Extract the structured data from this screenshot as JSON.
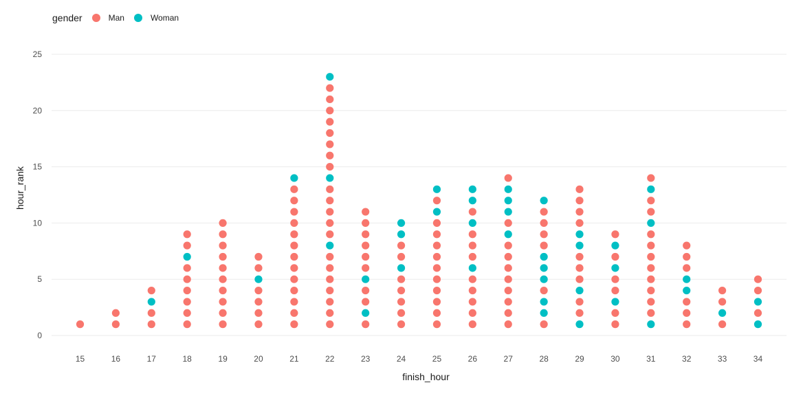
{
  "legend": {
    "title": "gender",
    "items": [
      {
        "label": "Man",
        "color": "#F8766D"
      },
      {
        "label": "Woman",
        "color": "#00BFC4"
      }
    ]
  },
  "chart_data": {
    "type": "scatter",
    "xlabel": "finish_hour",
    "ylabel": "hour_rank",
    "x_ticks": [
      15,
      16,
      17,
      18,
      19,
      20,
      21,
      22,
      23,
      24,
      25,
      26,
      27,
      28,
      29,
      30,
      31,
      32,
      33,
      34
    ],
    "y_ticks": [
      0,
      5,
      10,
      15,
      20,
      25
    ],
    "ylim": [
      0,
      25
    ],
    "xlim": [
      14.2,
      34.8
    ],
    "grid": true,
    "legend_position": "top-left",
    "series": [
      {
        "name": "Man",
        "color": "#F8766D"
      },
      {
        "name": "Woman",
        "color": "#00BFC4"
      }
    ],
    "columns": [
      {
        "x": 15,
        "genders": [
          "Man"
        ]
      },
      {
        "x": 16,
        "genders": [
          "Man",
          "Man"
        ]
      },
      {
        "x": 17,
        "genders": [
          "Man",
          "Man",
          "Woman",
          "Man"
        ]
      },
      {
        "x": 18,
        "genders": [
          "Man",
          "Man",
          "Man",
          "Man",
          "Man",
          "Man",
          "Woman",
          "Man",
          "Man"
        ]
      },
      {
        "x": 19,
        "genders": [
          "Man",
          "Man",
          "Man",
          "Man",
          "Man",
          "Man",
          "Man",
          "Man",
          "Man",
          "Man"
        ]
      },
      {
        "x": 20,
        "genders": [
          "Man",
          "Man",
          "Man",
          "Man",
          "Woman",
          "Man",
          "Man"
        ]
      },
      {
        "x": 21,
        "genders": [
          "Man",
          "Man",
          "Man",
          "Man",
          "Man",
          "Man",
          "Man",
          "Man",
          "Man",
          "Man",
          "Man",
          "Man",
          "Man",
          "Woman"
        ]
      },
      {
        "x": 22,
        "genders": [
          "Man",
          "Man",
          "Man",
          "Man",
          "Man",
          "Man",
          "Man",
          "Woman",
          "Man",
          "Man",
          "Man",
          "Man",
          "Man",
          "Woman",
          "Man",
          "Man",
          "Man",
          "Man",
          "Man",
          "Man",
          "Man",
          "Man",
          "Woman"
        ]
      },
      {
        "x": 23,
        "genders": [
          "Man",
          "Woman",
          "Man",
          "Man",
          "Woman",
          "Man",
          "Man",
          "Man",
          "Man",
          "Man",
          "Man"
        ]
      },
      {
        "x": 24,
        "genders": [
          "Man",
          "Man",
          "Man",
          "Man",
          "Man",
          "Woman",
          "Man",
          "Man",
          "Woman",
          "Woman"
        ]
      },
      {
        "x": 25,
        "genders": [
          "Man",
          "Man",
          "Man",
          "Man",
          "Man",
          "Man",
          "Man",
          "Man",
          "Man",
          "Man",
          "Woman",
          "Man",
          "Woman"
        ]
      },
      {
        "x": 26,
        "genders": [
          "Man",
          "Man",
          "Man",
          "Man",
          "Man",
          "Woman",
          "Man",
          "Man",
          "Man",
          "Woman",
          "Man",
          "Woman",
          "Woman"
        ]
      },
      {
        "x": 27,
        "genders": [
          "Man",
          "Man",
          "Man",
          "Man",
          "Man",
          "Man",
          "Man",
          "Man",
          "Woman",
          "Man",
          "Woman",
          "Woman",
          "Woman",
          "Man"
        ]
      },
      {
        "x": 28,
        "genders": [
          "Man",
          "Woman",
          "Woman",
          "Man",
          "Woman",
          "Woman",
          "Woman",
          "Man",
          "Man",
          "Man",
          "Man",
          "Woman"
        ]
      },
      {
        "x": 29,
        "genders": [
          "Woman",
          "Man",
          "Man",
          "Woman",
          "Man",
          "Man",
          "Man",
          "Woman",
          "Woman",
          "Man",
          "Man",
          "Man",
          "Man"
        ]
      },
      {
        "x": 30,
        "genders": [
          "Man",
          "Man",
          "Woman",
          "Man",
          "Man",
          "Woman",
          "Man",
          "Woman",
          "Man"
        ]
      },
      {
        "x": 31,
        "genders": [
          "Woman",
          "Man",
          "Man",
          "Man",
          "Man",
          "Man",
          "Man",
          "Man",
          "Man",
          "Woman",
          "Man",
          "Man",
          "Woman",
          "Man"
        ]
      },
      {
        "x": 32,
        "genders": [
          "Man",
          "Man",
          "Man",
          "Woman",
          "Woman",
          "Man",
          "Man",
          "Man"
        ]
      },
      {
        "x": 33,
        "genders": [
          "Man",
          "Woman",
          "Man",
          "Man"
        ]
      },
      {
        "x": 34,
        "genders": [
          "Woman",
          "Man",
          "Woman",
          "Man",
          "Man"
        ]
      }
    ]
  }
}
